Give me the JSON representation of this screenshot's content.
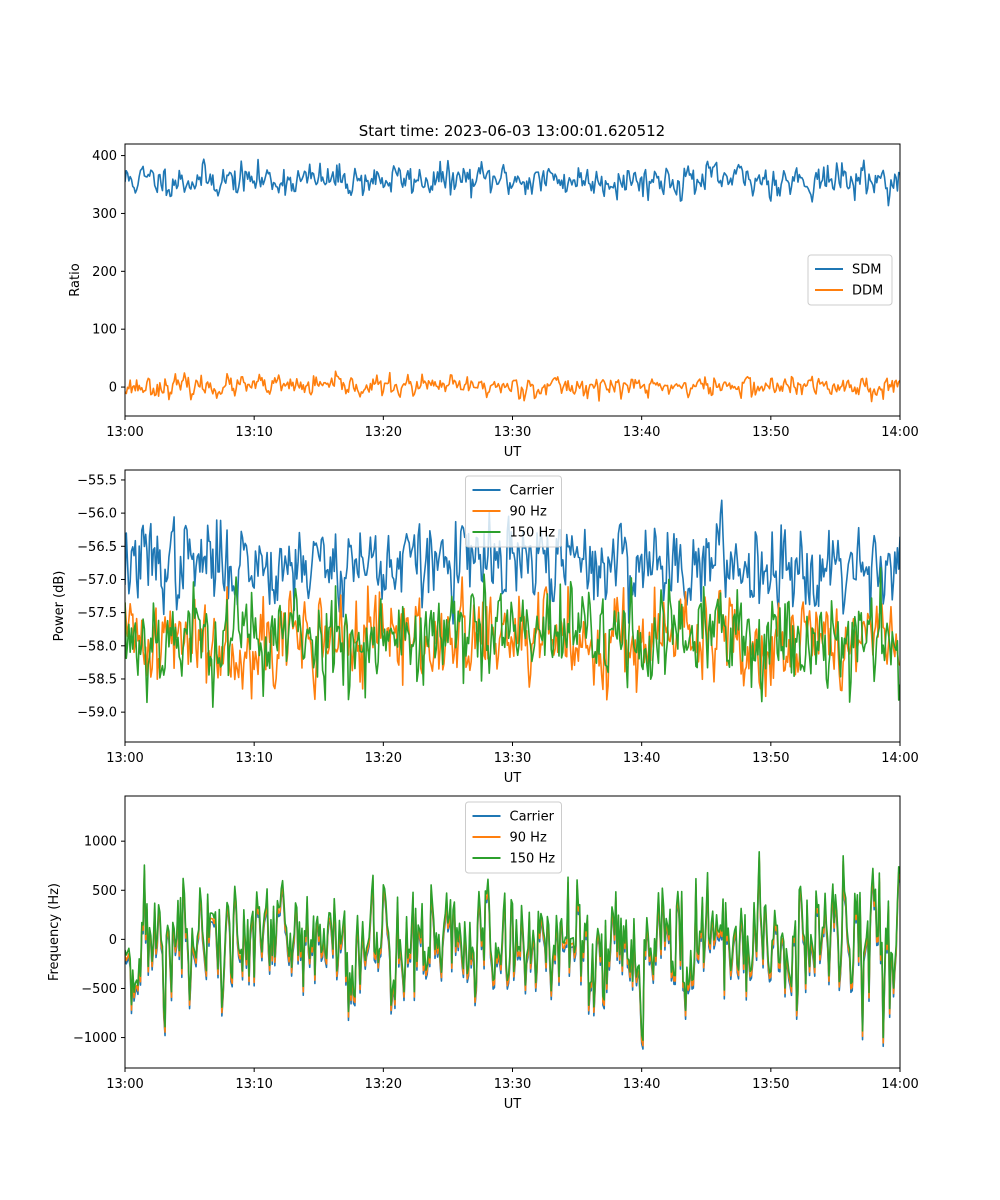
{
  "figure": {
    "title": "Start time: 2023-06-03 13:00:01.620512"
  },
  "chart_data": [
    {
      "type": "line",
      "title": "Start time: 2023-06-03 13:00:01.620512",
      "xlabel": "UT",
      "ylabel": "Ratio",
      "xlim": [
        "13:00",
        "14:00"
      ],
      "ylim": [
        -50,
        420
      ],
      "xticks": [
        "13:00",
        "13:10",
        "13:20",
        "13:30",
        "13:40",
        "13:50",
        "14:00"
      ],
      "yticks": [
        0,
        100,
        200,
        300,
        400
      ],
      "ytick_labels": [
        "0",
        "100",
        "200",
        "300",
        "400"
      ],
      "legend_position": "center-right",
      "series": [
        {
          "name": "SDM",
          "color": "#1f77b4",
          "mean": 358,
          "std": 14,
          "seed": 11
        },
        {
          "name": "DDM",
          "color": "#ff7f0e",
          "mean": 1,
          "std": 9,
          "seed": 23
        }
      ]
    },
    {
      "type": "line",
      "xlabel": "UT",
      "ylabel": "Power (dB)",
      "xlim": [
        "13:00",
        "14:00"
      ],
      "ylim": [
        -59.45,
        -55.35
      ],
      "xticks": [
        "13:00",
        "13:10",
        "13:20",
        "13:30",
        "13:40",
        "13:50",
        "14:00"
      ],
      "yticks": [
        -59.0,
        -58.5,
        -58.0,
        -57.5,
        -57.0,
        -56.5,
        -56.0,
        -55.5
      ],
      "ytick_labels": [
        "−59.0",
        "−58.5",
        "−58.0",
        "−57.5",
        "−57.0",
        "−56.5",
        "−56.0",
        "−55.5"
      ],
      "legend_position": "upper-center",
      "series": [
        {
          "name": "Carrier",
          "color": "#1f77b4",
          "mean": -56.75,
          "std": 0.32,
          "seed": 37
        },
        {
          "name": "90 Hz",
          "color": "#ff7f0e",
          "mean": -57.9,
          "std": 0.35,
          "seed": 41
        },
        {
          "name": "150 Hz",
          "color": "#2ca02c",
          "mean": -57.85,
          "std": 0.38,
          "seed": 53
        }
      ]
    },
    {
      "type": "line",
      "xlabel": "UT",
      "ylabel": "Frequency (Hz)",
      "xlim": [
        "13:00",
        "14:00"
      ],
      "ylim": [
        -1310,
        1460
      ],
      "xticks": [
        "13:00",
        "13:10",
        "13:20",
        "13:30",
        "13:40",
        "13:50",
        "14:00"
      ],
      "yticks": [
        -1000,
        -500,
        0,
        500,
        1000
      ],
      "ytick_labels": [
        "−1000",
        "−500",
        "0",
        "500",
        "1000"
      ],
      "legend_position": "upper-center",
      "series": [
        {
          "name": "Carrier",
          "color": "#1f77b4",
          "mean": -40,
          "std": 330,
          "seed": 71,
          "offset": -60
        },
        {
          "name": "90 Hz",
          "color": "#ff7f0e",
          "mean": -40,
          "std": 330,
          "seed": 71,
          "offset": -25
        },
        {
          "name": "150 Hz",
          "color": "#2ca02c",
          "mean": -40,
          "std": 330,
          "seed": 71,
          "offset": 30
        }
      ]
    }
  ]
}
